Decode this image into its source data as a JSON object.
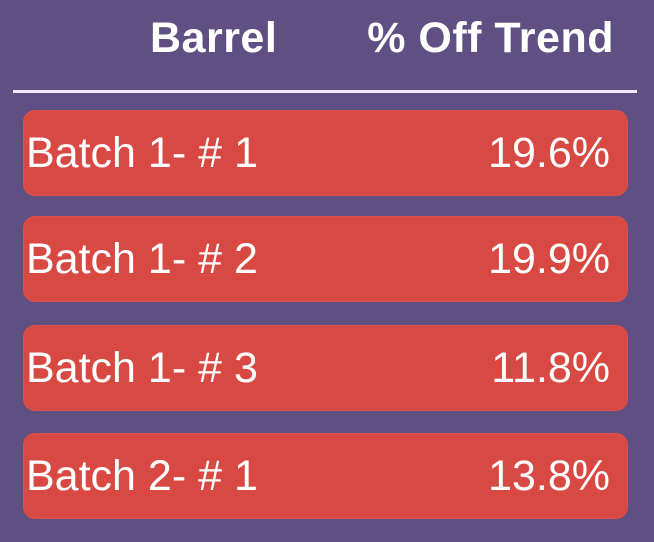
{
  "colors": {
    "background": "#5f4f82",
    "row_fill": "#d84943",
    "header_text": "#ffffff",
    "row_text": "#ffffff",
    "divider": "#efe8ff"
  },
  "header": {
    "barrel": "Barrel",
    "off_trend": "% Off Trend"
  },
  "rows": [
    {
      "label": "Batch 1- # 1",
      "value": "19.6%"
    },
    {
      "label": "Batch 1- # 2",
      "value": "19.9%"
    },
    {
      "label": "Batch 1- # 3",
      "value": "11.8%"
    },
    {
      "label": "Batch 2- # 1",
      "value": "13.8%"
    }
  ]
}
